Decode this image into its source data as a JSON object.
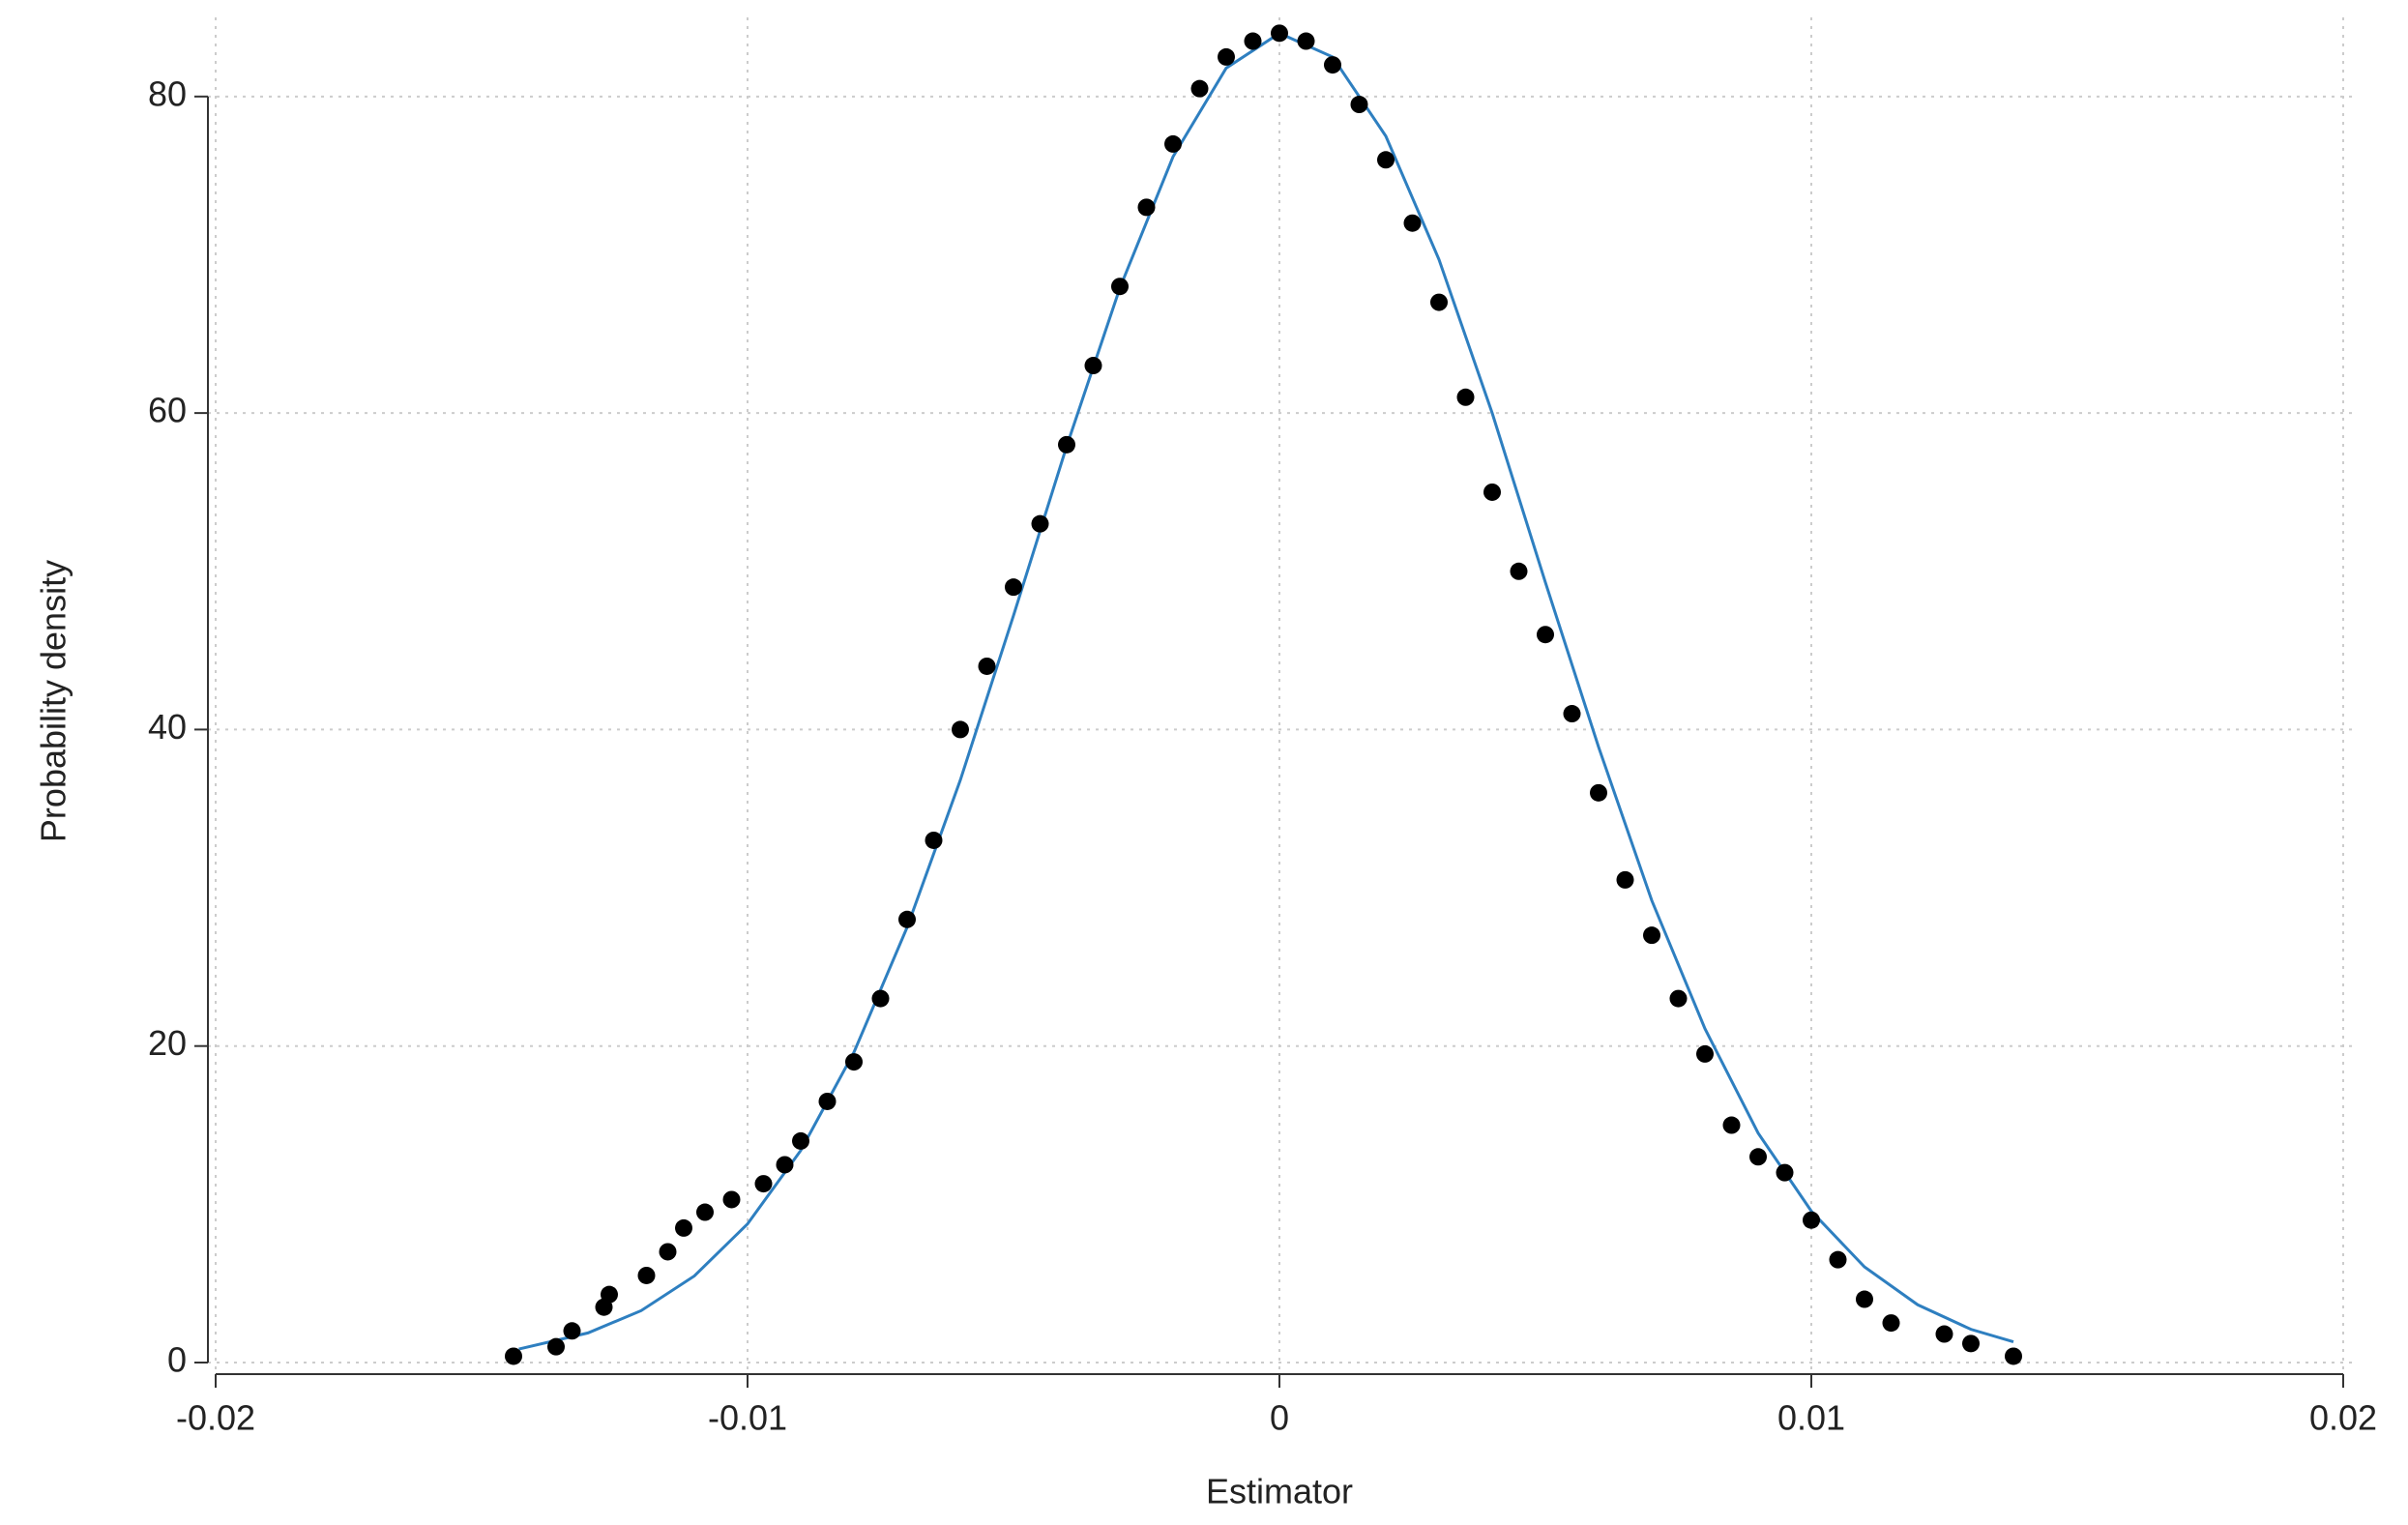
{
  "chart_data": {
    "type": "scatter",
    "xlabel": "Estimator",
    "ylabel": "Probability density",
    "xlim": [
      -0.02,
      0.02
    ],
    "ylim": [
      0,
      85
    ],
    "xticks": [
      -0.02,
      -0.01,
      0,
      0.01,
      0.02
    ],
    "yticks": [
      0,
      20,
      40,
      60,
      80
    ],
    "grid": true,
    "series": [
      {
        "type": "line",
        "color": "#2e7fc0",
        "x": [
          -0.0143,
          -0.013,
          -0.012,
          -0.011,
          -0.01,
          -0.009,
          -0.008,
          -0.007,
          -0.006,
          -0.005,
          -0.004,
          -0.003,
          -0.002,
          -0.001,
          0,
          0.001,
          0.002,
          0.003,
          0.004,
          0.005,
          0.006,
          0.007,
          0.008,
          0.009,
          0.01,
          0.011,
          0.012,
          0.013,
          0.0138
        ],
        "values": [
          0.85,
          1.87,
          3.28,
          5.47,
          8.76,
          13.4,
          19.6,
          27.5,
          36.8,
          47.2,
          57.9,
          67.9,
          76.2,
          81.8,
          84.0,
          82.5,
          77.5,
          69.7,
          60.0,
          49.3,
          38.9,
          29.2,
          21.1,
          14.5,
          9.57,
          6.04,
          3.65,
          2.1,
          1.31
        ]
      },
      {
        "type": "scatter",
        "color": "#000000",
        "x": [
          -0.0144,
          -0.0136,
          -0.0133,
          -0.0127,
          -0.0126,
          -0.0119,
          -0.0115,
          -0.0112,
          -0.0108,
          -0.0103,
          -0.0097,
          -0.0093,
          -0.009,
          -0.0085,
          -0.008,
          -0.0075,
          -0.007,
          -0.0065,
          -0.006,
          -0.0055,
          -0.005,
          -0.0045,
          -0.004,
          -0.0035,
          -0.003,
          -0.0025,
          -0.002,
          -0.0015,
          -0.001,
          -0.0005,
          0,
          0.0005,
          0.001,
          0.0015,
          0.002,
          0.0025,
          0.003,
          0.0035,
          0.004,
          0.0045,
          0.005,
          0.0055,
          0.006,
          0.0065,
          0.007,
          0.0075,
          0.008,
          0.0085,
          0.009,
          0.0095,
          0.01,
          0.0105,
          0.011,
          0.0115,
          0.0125,
          0.013,
          0.0138
        ],
        "values": [
          0.4,
          1.0,
          2.0,
          3.5,
          4.3,
          5.5,
          7,
          8.5,
          9.5,
          10.3,
          11.3,
          12.5,
          14,
          16.5,
          19,
          23,
          28,
          33,
          40,
          44,
          49,
          53,
          58,
          63,
          68,
          73,
          77,
          80.5,
          82.5,
          83.5,
          84,
          83.5,
          82,
          79.5,
          76,
          72,
          67,
          61,
          55,
          50,
          46,
          41,
          36,
          30.5,
          27,
          23,
          19.5,
          15,
          13,
          12,
          9,
          6.5,
          4,
          2.5,
          1.8,
          1.2,
          0.4
        ]
      }
    ]
  }
}
